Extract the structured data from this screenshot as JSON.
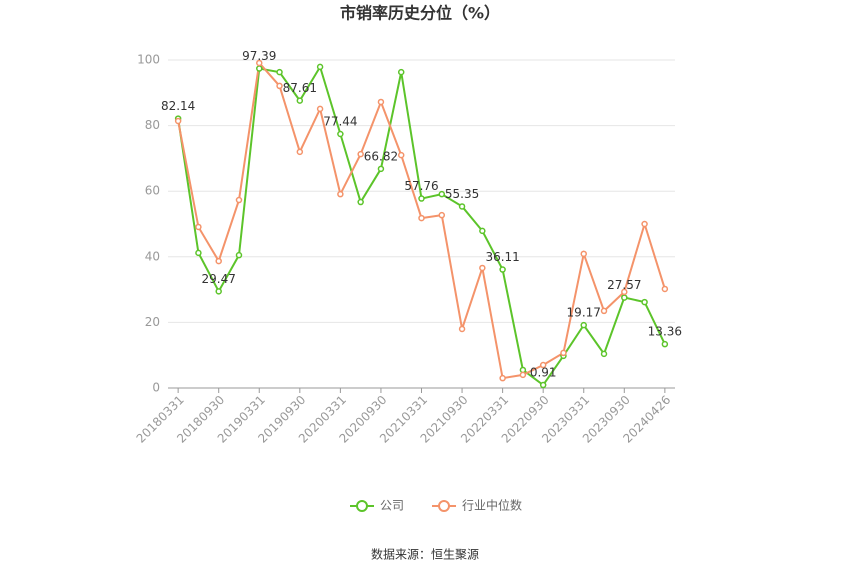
{
  "chart_data": {
    "type": "line",
    "title": "市销率历史分位（%）",
    "categories": [
      "20180331",
      null,
      "20180930",
      null,
      "20190331",
      null,
      "20190930",
      null,
      "20200331",
      null,
      "20200930",
      null,
      "20210331",
      null,
      "20210930",
      null,
      "20220331",
      null,
      "20220930",
      null,
      "20230331",
      null,
      "20230930",
      null,
      "20240426"
    ],
    "series": [
      {
        "name": "公司",
        "color": "#5cc42a",
        "values": [
          82.14,
          41.2,
          29.47,
          40.5,
          97.39,
          96.3,
          87.61,
          97.9,
          77.44,
          56.7,
          66.82,
          96.3,
          57.76,
          59.1,
          55.35,
          47.9,
          36.11,
          5.5,
          0.91,
          9.8,
          19.17,
          10.4,
          27.57,
          26.2,
          13.36
        ]
      },
      {
        "name": "行业中位数",
        "color": "#f4936a",
        "values": [
          81.4,
          49.1,
          38.7,
          57.3,
          99.1,
          92.1,
          72.0,
          85.1,
          59.1,
          71.3,
          87.2,
          71.0,
          51.8,
          52.7,
          18.0,
          36.6,
          3.0,
          4.0,
          7.0,
          10.7,
          40.9,
          23.5,
          29.3,
          50.0,
          30.2
        ]
      }
    ],
    "ylim": [
      0,
      100
    ],
    "yticks": [
      0,
      20,
      40,
      60,
      80,
      100
    ],
    "grid": true,
    "legend": "bottom",
    "source": "数据来源：恒生聚源"
  }
}
